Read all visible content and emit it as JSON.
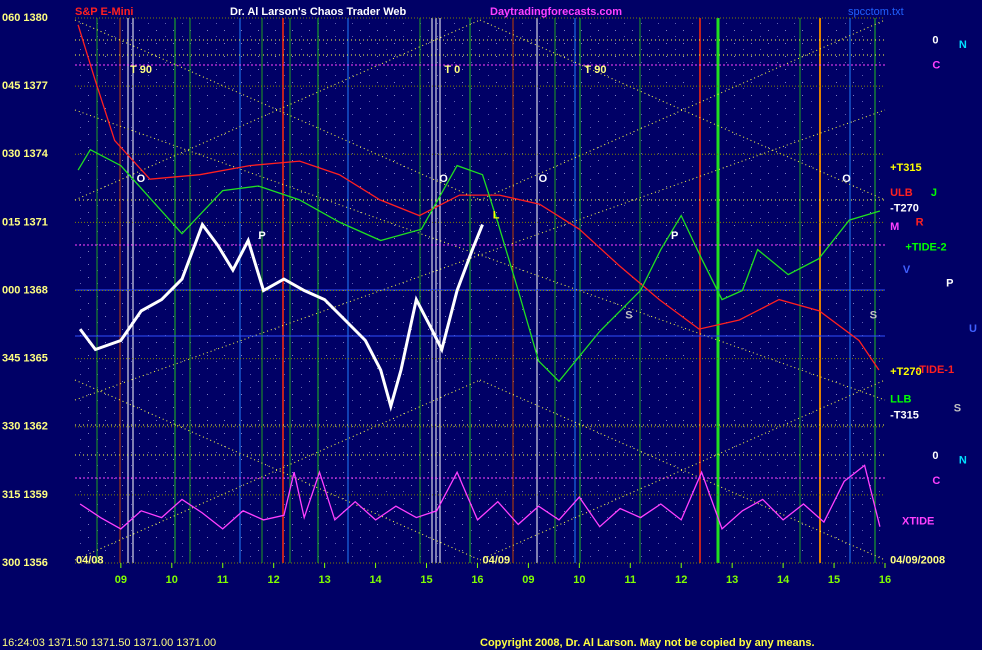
{
  "chart_data": {
    "type": "line",
    "title": "S&P E-Mini",
    "subtitle": "Dr. Al Larson's Chaos Trader Web",
    "site": "Daytradingforecasts.com",
    "file": "spcctom.txt",
    "status": "16:24:03  1371.50 1371.50 1371.00 1371.00",
    "copyright": "Copyright 2008, Dr. Al Larson. May not be copied by any means.",
    "xlim": [
      8.1,
      24
    ],
    "ylim": [
      1356,
      1380
    ],
    "xticks": [
      {
        "value": 9,
        "label": "09"
      },
      10,
      11,
      12,
      13,
      14,
      15,
      16,
      {
        "value": 17,
        "label": "09"
      },
      {
        "value": 18,
        "label": "10"
      },
      {
        "value": 19,
        "label": "11"
      },
      {
        "value": 20,
        "label": "12"
      },
      {
        "value": 21,
        "label": "13"
      },
      {
        "value": 22,
        "label": "14"
      },
      {
        "value": 23,
        "label": "15"
      },
      {
        "value": 24,
        "label": "16"
      }
    ],
    "yticks": [
      {
        "value": 1356,
        "label": "300 1356"
      },
      {
        "value": 1359,
        "label": "315 1359"
      },
      {
        "value": 1362,
        "label": "330 1362"
      },
      {
        "value": 1365,
        "label": "345 1365"
      },
      {
        "value": 1368,
        "label": "000 1368"
      },
      {
        "value": 1371,
        "label": "015 1371"
      },
      {
        "value": 1374,
        "label": "030 1374"
      },
      {
        "value": 1377,
        "label": "045 1377"
      },
      {
        "value": 1380,
        "label": "060 1380"
      }
    ],
    "grid": true,
    "series": [
      {
        "color": "#ff2020",
        "x": [
          8.16,
          8.49,
          8.88,
          9.57,
          10.55,
          11.53,
          12.51,
          13.29,
          14.08,
          14.86,
          15.65,
          16.43,
          17.22,
          18.0,
          18.78,
          19.57,
          20.35,
          21.14,
          21.92,
          22.71,
          23.49,
          23.88
        ],
        "values": [
          1379.7,
          1377.3,
          1374.6,
          1372.9,
          1373.1,
          1373.5,
          1373.7,
          1373.1,
          1372.0,
          1371.3,
          1372.2,
          1372.2,
          1371.8,
          1370.7,
          1369.1,
          1367.6,
          1366.3,
          1366.7,
          1367.6,
          1367.1,
          1365.8,
          1364.5
        ]
      },
      {
        "color": "#20e020",
        "x": [
          8.16,
          8.4,
          9.0,
          9.6,
          10.2,
          11.0,
          11.7,
          12.5,
          13.3,
          14.1,
          14.9,
          15.6,
          16.1,
          16.4,
          16.8,
          17.2,
          17.6,
          18.4,
          19.2,
          19.6,
          20.0,
          20.4,
          20.8,
          21.2,
          21.5,
          22.1,
          22.7,
          23.3,
          23.9
        ],
        "values": [
          1373.3,
          1374.2,
          1373.5,
          1372.0,
          1370.5,
          1372.4,
          1372.6,
          1372.0,
          1371.0,
          1370.2,
          1370.7,
          1373.5,
          1373.1,
          1371.0,
          1368.0,
          1364.9,
          1364.0,
          1366.2,
          1368.0,
          1369.8,
          1371.3,
          1369.4,
          1367.6,
          1368.0,
          1369.8,
          1368.7,
          1369.4,
          1371.1,
          1371.5
        ]
      },
      {
        "name": "XTIDE",
        "color": "#ff40ff",
        "x": [
          8.2,
          8.6,
          9.0,
          9.4,
          9.8,
          10.2,
          10.6,
          11.0,
          11.4,
          11.8,
          12.2,
          12.4,
          12.6,
          12.9,
          13.2,
          13.6,
          14.0,
          14.4,
          14.8,
          15.2,
          15.6,
          16.0,
          16.4,
          16.8,
          17.2,
          17.6,
          18.0,
          18.4,
          18.8,
          19.2,
          19.6,
          20.0,
          20.4,
          20.8,
          21.2,
          21.6,
          22.0,
          22.4,
          22.8,
          23.2,
          23.6,
          23.9
        ],
        "values": [
          1358.6,
          1358.0,
          1357.5,
          1358.3,
          1358.0,
          1358.8,
          1358.2,
          1357.5,
          1358.3,
          1357.9,
          1358.1,
          1360.0,
          1358.0,
          1360.0,
          1357.9,
          1358.7,
          1357.9,
          1358.5,
          1358.0,
          1358.3,
          1360.0,
          1357.9,
          1358.7,
          1357.7,
          1358.5,
          1357.9,
          1358.9,
          1357.6,
          1358.4,
          1358.0,
          1358.6,
          1357.9,
          1360.0,
          1357.5,
          1358.3,
          1358.8,
          1357.9,
          1358.6,
          1357.8,
          1359.6,
          1360.3,
          1357.6
        ]
      },
      {
        "color": "#ffffff",
        "x": [
          8.2,
          8.5,
          9.0,
          9.4,
          9.8,
          10.2,
          10.6,
          10.9,
          11.2,
          11.5,
          11.8,
          12.2,
          12.6,
          13.0,
          13.4,
          13.8,
          14.1,
          14.3,
          14.5,
          14.8,
          15.1,
          15.3,
          15.6,
          15.9,
          16.1
        ],
        "values": [
          1366.3,
          1365.4,
          1365.8,
          1367.1,
          1367.6,
          1368.5,
          1370.9,
          1370.0,
          1368.9,
          1370.2,
          1368.0,
          1368.5,
          1368.0,
          1367.6,
          1366.7,
          1365.8,
          1364.5,
          1362.9,
          1364.5,
          1367.6,
          1366.3,
          1365.4,
          1368.0,
          1369.8,
          1370.9
        ]
      }
    ],
    "annotations": [
      {
        "text": "T 90",
        "x": 9.18,
        "y": 1377.7,
        "color": "#ffff80"
      },
      {
        "text": "T 0",
        "x": 15.35,
        "y": 1377.7,
        "color": "#ffff80"
      },
      {
        "text": "T 90",
        "x": 18.1,
        "y": 1377.7,
        "color": "#ffff80"
      },
      {
        "text": "O",
        "x": 9.31,
        "y": 1372.9,
        "color": "#ffffff"
      },
      {
        "text": "O",
        "x": 15.25,
        "y": 1372.9,
        "color": "#ffffff"
      },
      {
        "text": "O",
        "x": 17.2,
        "y": 1372.9,
        "color": "#ffffff"
      },
      {
        "text": "O",
        "x": 23.16,
        "y": 1372.9,
        "color": "#ffffff"
      },
      {
        "text": "P",
        "x": 11.7,
        "y": 1370.4,
        "color": "#ffffff"
      },
      {
        "text": "P",
        "x": 19.8,
        "y": 1370.4,
        "color": "#ffffff"
      },
      {
        "text": "S",
        "x": 18.9,
        "y": 1366.9,
        "color": "#c0c0c0"
      },
      {
        "text": "S",
        "x": 23.7,
        "y": 1366.9,
        "color": "#c0c0c0"
      },
      {
        "text": "L",
        "x": 16.3,
        "y": 1371.3,
        "color": "#ffff00"
      },
      {
        "text": "+T315",
        "x": 24.1,
        "y": 1373.4,
        "color": "#ffff00"
      },
      {
        "text": "ULB",
        "x": 24.1,
        "y": 1372.3,
        "color": "#ff2020"
      },
      {
        "text": "-T270",
        "x": 24.1,
        "y": 1371.6,
        "color": "#ffffff"
      },
      {
        "text": "+TIDE-2",
        "x": 24.4,
        "y": 1369.9,
        "color": "#00ff00"
      },
      {
        "text": "+T270",
        "x": 24.1,
        "y": 1364.4,
        "color": "#ffff00"
      },
      {
        "text": "-TIDE-1",
        "x": 24.6,
        "y": 1364.5,
        "color": "#ff2020"
      },
      {
        "text": "LLB",
        "x": 24.1,
        "y": 1363.2,
        "color": "#00ff00"
      },
      {
        "text": "-T315",
        "x": 24.1,
        "y": 1362.5,
        "color": "#ffffff"
      },
      {
        "text": "0",
        "x": 24.93,
        "y": 1379.0,
        "color": "#ffffff"
      },
      {
        "text": "N",
        "x": 25.45,
        "y": 1378.8,
        "color": "#00e0ff"
      },
      {
        "text": "C",
        "x": 24.93,
        "y": 1377.9,
        "color": "#ff40ff"
      },
      {
        "text": "J",
        "x": 24.9,
        "y": 1372.3,
        "color": "#00ff00"
      },
      {
        "text": "R",
        "x": 24.6,
        "y": 1371.0,
        "color": "#ff2020"
      },
      {
        "text": "M",
        "x": 24.1,
        "y": 1370.8,
        "color": "#ff40ff"
      },
      {
        "text": "V",
        "x": 24.35,
        "y": 1368.9,
        "color": "#4060ff"
      },
      {
        "text": "P",
        "x": 25.2,
        "y": 1368.3,
        "color": "#ffffff"
      },
      {
        "text": "U",
        "x": 25.65,
        "y": 1366.3,
        "color": "#4060ff"
      },
      {
        "text": "S",
        "x": 25.35,
        "y": 1362.8,
        "color": "#c0c0c0"
      },
      {
        "text": "0",
        "x": 24.93,
        "y": 1360.7,
        "color": "#ffffff"
      },
      {
        "text": "N",
        "x": 25.45,
        "y": 1360.5,
        "color": "#00e0ff"
      },
      {
        "text": "C",
        "x": 24.93,
        "y": 1359.6,
        "color": "#ff40ff"
      },
      {
        "text": "04/08",
        "x": 8.12,
        "y": 1356.1,
        "color": "#ffff80"
      },
      {
        "text": "04/09",
        "x": 16.1,
        "y": 1356.1,
        "color": "#ffff80"
      },
      {
        "text": "04/09/2008",
        "x": 24.1,
        "y": 1356.1,
        "color": "#ffff80"
      }
    ]
  }
}
